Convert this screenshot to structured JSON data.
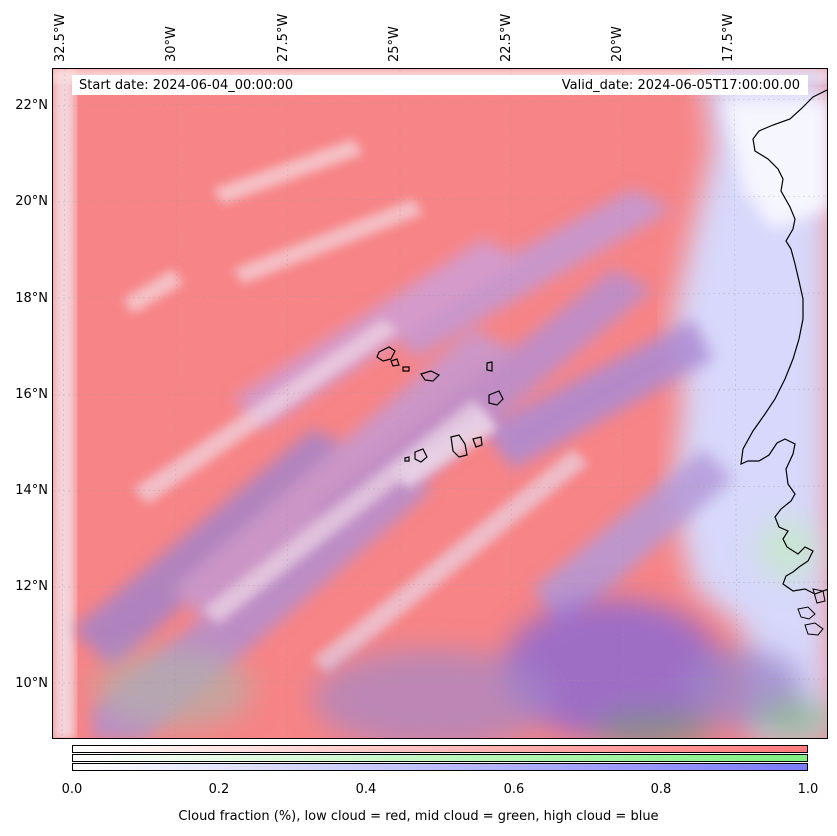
{
  "map": {
    "start_date": "Start date: 2024-06-04_00:00:00",
    "valid_date": "Valid_date: 2024-06-05T17:00:00.00",
    "longitude_labels": [
      "32.5°W",
      "30°W",
      "27.5°W",
      "25°W",
      "22.5°W",
      "20°W",
      "17.5°W"
    ],
    "latitude_labels": [
      "22°N",
      "20°N",
      "18°N",
      "16°N",
      "14°N",
      "12°N",
      "10°N"
    ],
    "extent": {
      "lon_min": -32.8,
      "lon_max": -15.5,
      "lat_min": 8.8,
      "lat_max": 22.8
    },
    "layers": [
      {
        "name": "low cloud",
        "color": "#ff7b7b"
      },
      {
        "name": "mid cloud",
        "color": "#7ff07f"
      },
      {
        "name": "high cloud",
        "color": "#7b7bff"
      }
    ],
    "features": [
      "coastline-west-africa",
      "cape-verde-islands"
    ]
  },
  "colorbar": {
    "ticks": [
      "0.0",
      "0.2",
      "0.4",
      "0.6",
      "0.8",
      "1.0"
    ],
    "caption": "Cloud fraction (%), low cloud = red, mid cloud = green, high cloud = blue"
  }
}
